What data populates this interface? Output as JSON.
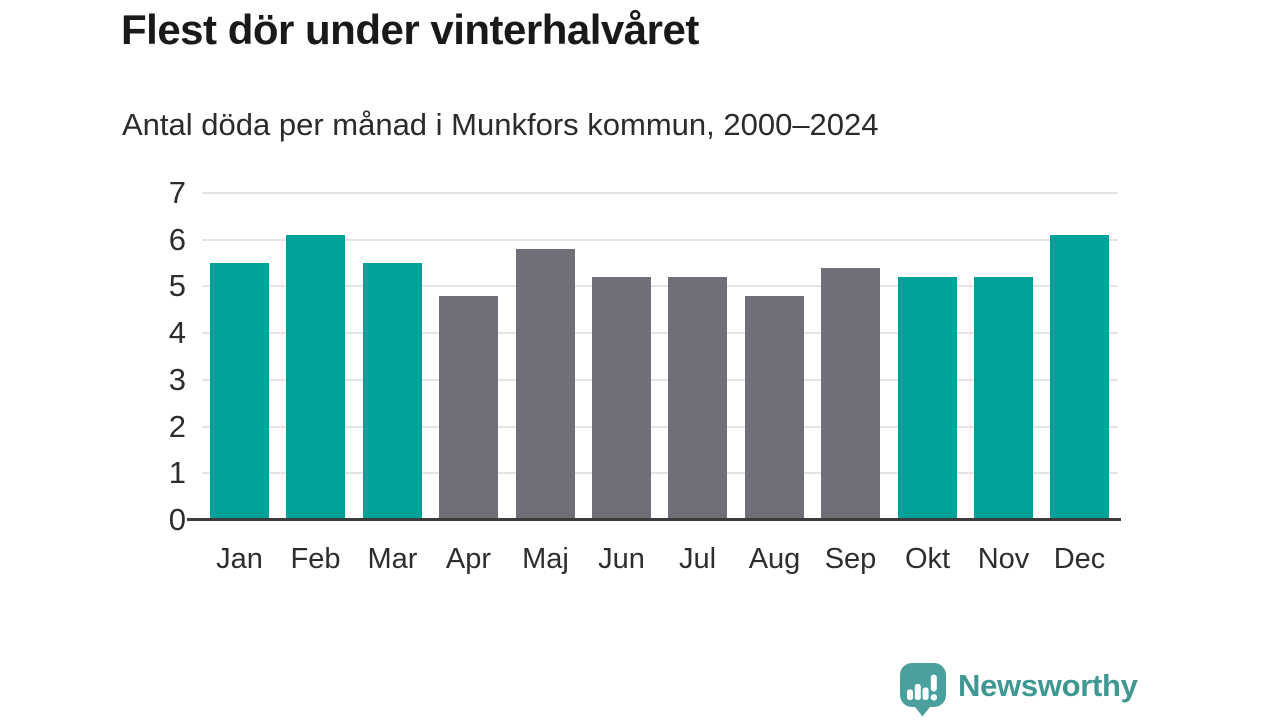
{
  "header": {
    "title": "Flest dör under vinterhalvåret",
    "subtitle": "Antal döda per månad i Munkfors kommun, 2000–2024"
  },
  "chart_data": {
    "type": "bar",
    "title": "Flest dör under vinterhalvåret",
    "subtitle": "Antal döda per månad i Munkfors kommun, 2000–2024",
    "categories": [
      "Jan",
      "Feb",
      "Mar",
      "Apr",
      "Maj",
      "Jun",
      "Jul",
      "Aug",
      "Sep",
      "Okt",
      "Nov",
      "Dec"
    ],
    "values": [
      5.5,
      6.1,
      5.5,
      4.8,
      5.8,
      5.2,
      5.2,
      4.8,
      5.4,
      5.2,
      5.2,
      6.1
    ],
    "groups": [
      "winter",
      "winter",
      "winter",
      "summer",
      "summer",
      "summer",
      "summer",
      "summer",
      "summer",
      "winter",
      "winter",
      "winter"
    ],
    "xlabel": "",
    "ylabel": "",
    "ylim": [
      0,
      7
    ],
    "yticks": [
      0,
      1,
      2,
      3,
      4,
      5,
      6,
      7
    ],
    "grid": true,
    "legend": false,
    "colors": {
      "winter": "#00a19a",
      "summer": "#6f6f77"
    }
  },
  "footer": {
    "brand": "Newsworthy"
  },
  "colors": {
    "accent_teal": "#00a19a",
    "neutral_gray": "#6f6f77",
    "logo_teal": "#4aa09c",
    "logo_text_teal": "#3f9792",
    "gridline": "#e4e4e4",
    "axis_line": "#3b3b3b"
  }
}
